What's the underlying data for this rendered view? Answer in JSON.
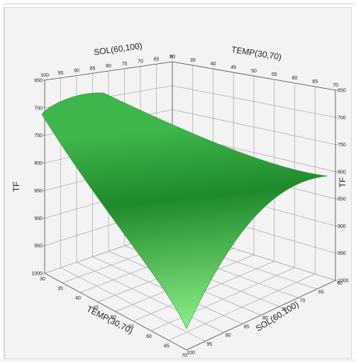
{
  "chart_data": {
    "type": "surface",
    "series": [
      {
        "name": "TF",
        "colors": {
          "surface_dark": "#1f8a2c",
          "surface_mid": "#3fb64c",
          "surface_light": "#8ff08a",
          "grid": "#a6a6a6",
          "axis": "#555555"
        },
        "x_var": "TEMP(30,70)",
        "y_var": "SOL(60,100)",
        "z_var": "TF",
        "corners": [
          {
            "temp": 30,
            "sol": 100,
            "tf": 715
          },
          {
            "temp": 70,
            "sol": 100,
            "tf": 1000
          },
          {
            "temp": 70,
            "sol": 60,
            "tf": 810
          },
          {
            "temp": 30,
            "sol": 60,
            "tf": 660
          }
        ]
      }
    ],
    "axes": {
      "temp": {
        "label": "TEMP(30,70)",
        "range": [
          30,
          70
        ],
        "ticks": [
          30,
          35,
          40,
          45,
          50,
          55,
          60,
          65,
          70
        ]
      },
      "sol": {
        "label": "SOL(60,100)",
        "range": [
          60,
          100
        ],
        "ticks": [
          100,
          95,
          90,
          85,
          80,
          75,
          70,
          65,
          60
        ]
      },
      "tf": {
        "label": "TF",
        "range": [
          650,
          1000
        ],
        "ticks": [
          650,
          700,
          750,
          800,
          850,
          900,
          950,
          1000
        ],
        "inverted": true
      }
    },
    "left_vertical_label": "TF",
    "grid": true,
    "legend": "none"
  }
}
